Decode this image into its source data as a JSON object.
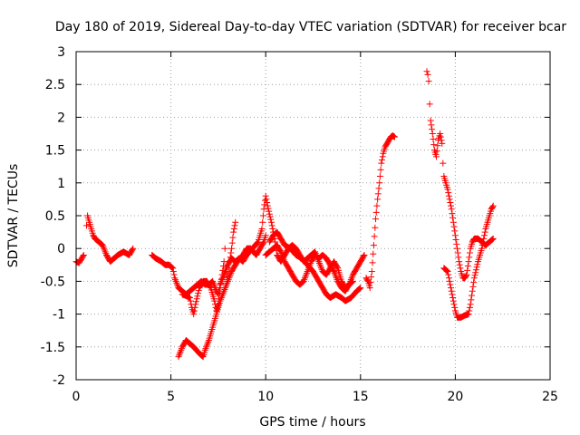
{
  "chart_data": {
    "type": "scatter",
    "title": "Day 180 of 2019, Sidereal Day-to-day VTEC variation (SDTVAR) for receiver bcar",
    "xlabel": "GPS time / hours",
    "ylabel": "SDTVAR / TECUs",
    "xlim": [
      0,
      25
    ],
    "ylim": [
      -2,
      3
    ],
    "xticks": [
      0,
      5,
      10,
      15,
      20,
      25
    ],
    "yticks": [
      -2,
      -1.5,
      -1,
      -0.5,
      0,
      0.5,
      1,
      1.5,
      2,
      2.5,
      3
    ],
    "xtick_labels": [
      "0",
      "5",
      "10",
      "15",
      "20",
      "25"
    ],
    "ytick_labels": [
      "-2",
      "-1.5",
      "-1",
      "-0.5",
      "0",
      "0.5",
      "1",
      "1.5",
      "2",
      "2.5",
      "3"
    ],
    "grid": true,
    "marker": "+",
    "series": [
      {
        "name": "SDTVAR",
        "color": "#ff0000",
        "segments": [
          [
            [
              0.0,
              -0.2
            ],
            [
              0.15,
              -0.22
            ],
            [
              0.3,
              -0.15
            ],
            [
              0.4,
              -0.1
            ]
          ],
          [
            [
              0.55,
              0.35
            ],
            [
              0.6,
              0.5
            ],
            [
              0.7,
              0.4
            ],
            [
              0.8,
              0.3
            ],
            [
              0.9,
              0.2
            ],
            [
              1.0,
              0.15
            ],
            [
              1.2,
              0.1
            ],
            [
              1.4,
              0.05
            ],
            [
              1.6,
              -0.1
            ],
            [
              1.8,
              -0.2
            ],
            [
              2.0,
              -0.15
            ],
            [
              2.2,
              -0.1
            ],
            [
              2.5,
              -0.05
            ],
            [
              2.8,
              -0.1
            ],
            [
              3.0,
              0.0
            ]
          ],
          [
            [
              4.0,
              -0.1
            ],
            [
              4.2,
              -0.15
            ],
            [
              4.5,
              -0.2
            ],
            [
              4.7,
              -0.25
            ],
            [
              4.9,
              -0.25
            ],
            [
              5.1,
              -0.3
            ],
            [
              5.2,
              -0.45
            ],
            [
              5.4,
              -0.6
            ],
            [
              5.6,
              -0.65
            ],
            [
              5.8,
              -0.7
            ],
            [
              6.0,
              -0.65
            ],
            [
              6.2,
              -0.6
            ],
            [
              6.4,
              -0.55
            ],
            [
              6.6,
              -0.5
            ],
            [
              6.8,
              -0.55
            ],
            [
              7.0,
              -0.55
            ],
            [
              7.2,
              -0.5
            ],
            [
              7.4,
              -0.65
            ],
            [
              7.5,
              -0.7
            ],
            [
              7.6,
              -0.55
            ],
            [
              7.8,
              -0.4
            ],
            [
              8.0,
              -0.25
            ],
            [
              8.2,
              -0.15
            ],
            [
              8.4,
              -0.2
            ],
            [
              8.6,
              -0.15
            ],
            [
              8.8,
              -0.2
            ],
            [
              9.0,
              -0.1
            ],
            [
              9.3,
              0.0
            ],
            [
              9.6,
              0.1
            ],
            [
              9.8,
              0.3
            ],
            [
              9.9,
              0.6
            ],
            [
              10.0,
              0.8
            ],
            [
              10.1,
              0.65
            ],
            [
              10.3,
              0.4
            ],
            [
              10.5,
              0.1
            ],
            [
              10.6,
              -0.1
            ],
            [
              10.8,
              -0.2
            ],
            [
              11.0,
              -0.1
            ],
            [
              11.2,
              0.0
            ],
            [
              11.4,
              0.05
            ],
            [
              11.6,
              0.0
            ],
            [
              11.8,
              -0.1
            ],
            [
              12.0,
              -0.2
            ],
            [
              12.2,
              -0.15
            ],
            [
              12.4,
              -0.1
            ],
            [
              12.6,
              -0.05
            ],
            [
              12.8,
              -0.2
            ],
            [
              13.0,
              -0.35
            ],
            [
              13.2,
              -0.4
            ],
            [
              13.4,
              -0.3
            ],
            [
              13.6,
              -0.2
            ],
            [
              13.8,
              -0.3
            ],
            [
              14.0,
              -0.5
            ],
            [
              14.2,
              -0.6
            ],
            [
              14.4,
              -0.55
            ],
            [
              14.6,
              -0.4
            ],
            [
              14.8,
              -0.3
            ],
            [
              15.0,
              -0.2
            ],
            [
              15.2,
              -0.1
            ]
          ],
          [
            [
              5.4,
              -1.65
            ],
            [
              5.6,
              -1.5
            ],
            [
              5.8,
              -1.4
            ],
            [
              6.0,
              -1.45
            ],
            [
              6.2,
              -1.5
            ],
            [
              6.5,
              -1.6
            ],
            [
              6.7,
              -1.65
            ],
            [
              6.8,
              -1.55
            ],
            [
              7.0,
              -1.4
            ],
            [
              7.2,
              -1.2
            ],
            [
              7.4,
              -1.0
            ],
            [
              7.6,
              -0.8
            ],
            [
              7.8,
              -0.65
            ],
            [
              8.0,
              -0.5
            ],
            [
              8.1,
              -0.2
            ],
            [
              8.2,
              0.0
            ],
            [
              8.3,
              0.25
            ],
            [
              8.4,
              0.4
            ]
          ],
          [
            [
              5.6,
              -0.7
            ],
            [
              5.8,
              -0.72
            ],
            [
              6.0,
              -0.75
            ],
            [
              6.1,
              -0.9
            ],
            [
              6.2,
              -1.0
            ],
            [
              6.3,
              -0.85
            ],
            [
              6.5,
              -0.6
            ],
            [
              6.7,
              -0.5
            ],
            [
              6.9,
              -0.5
            ],
            [
              7.1,
              -0.6
            ],
            [
              7.3,
              -0.8
            ],
            [
              7.4,
              -0.95
            ],
            [
              7.5,
              -0.85
            ],
            [
              7.6,
              -0.6
            ],
            [
              7.7,
              -0.4
            ],
            [
              7.8,
              -0.2
            ],
            [
              7.85,
              0.0
            ],
            [
              7.9,
              -0.3
            ],
            [
              8.0,
              -0.5
            ],
            [
              8.2,
              -0.35
            ],
            [
              8.5,
              -0.2
            ],
            [
              8.8,
              -0.1
            ],
            [
              9.0,
              0.0
            ],
            [
              9.2,
              0.0
            ],
            [
              9.5,
              -0.1
            ],
            [
              9.7,
              0.0
            ],
            [
              9.9,
              0.1
            ],
            [
              10.0,
              0.2
            ]
          ],
          [
            [
              10.0,
              -0.1
            ],
            [
              10.2,
              -0.05
            ],
            [
              10.4,
              0.0
            ],
            [
              10.6,
              0.05
            ],
            [
              10.8,
              -0.05
            ],
            [
              11.0,
              -0.2
            ],
            [
              11.2,
              -0.3
            ],
            [
              11.4,
              -0.4
            ],
            [
              11.6,
              -0.5
            ],
            [
              11.8,
              -0.55
            ],
            [
              12.0,
              -0.5
            ],
            [
              12.2,
              -0.35
            ],
            [
              12.4,
              -0.2
            ],
            [
              12.6,
              -0.1
            ],
            [
              12.8,
              -0.15
            ],
            [
              13.0,
              -0.1
            ],
            [
              13.2,
              -0.15
            ],
            [
              13.4,
              -0.25
            ],
            [
              13.6,
              -0.35
            ],
            [
              13.8,
              -0.5
            ],
            [
              14.0,
              -0.6
            ],
            [
              14.2,
              -0.65
            ],
            [
              14.4,
              -0.55
            ],
            [
              14.6,
              -0.5
            ]
          ],
          [
            [
              10.2,
              0.1
            ],
            [
              10.4,
              0.2
            ],
            [
              10.6,
              0.25
            ],
            [
              10.8,
              0.15
            ],
            [
              11.0,
              0.05
            ],
            [
              11.3,
              0.0
            ],
            [
              11.6,
              -0.1
            ],
            [
              11.9,
              -0.15
            ],
            [
              12.2,
              -0.25
            ],
            [
              12.5,
              -0.35
            ],
            [
              12.8,
              -0.5
            ],
            [
              13.0,
              -0.6
            ],
            [
              13.2,
              -0.7
            ],
            [
              13.4,
              -0.75
            ],
            [
              13.7,
              -0.7
            ],
            [
              14.0,
              -0.75
            ],
            [
              14.2,
              -0.8
            ],
            [
              14.5,
              -0.75
            ],
            [
              14.8,
              -0.65
            ],
            [
              15.0,
              -0.6
            ]
          ],
          [
            [
              15.3,
              -0.45
            ],
            [
              15.4,
              -0.5
            ],
            [
              15.5,
              -0.6
            ],
            [
              15.6,
              -0.35
            ],
            [
              15.7,
              0.05
            ],
            [
              15.8,
              0.45
            ],
            [
              15.9,
              0.75
            ],
            [
              16.0,
              1.0
            ],
            [
              16.1,
              1.3
            ],
            [
              16.2,
              1.45
            ],
            [
              16.3,
              1.55
            ],
            [
              16.4,
              1.6
            ],
            [
              16.5,
              1.65
            ],
            [
              16.6,
              1.7
            ],
            [
              16.7,
              1.72
            ],
            [
              16.8,
              1.7
            ]
          ],
          [
            [
              18.5,
              2.7
            ],
            [
              18.55,
              2.65
            ],
            [
              18.6,
              2.55
            ],
            [
              18.65,
              2.2
            ],
            [
              18.7,
              1.95
            ],
            [
              18.8,
              1.75
            ],
            [
              18.9,
              1.5
            ],
            [
              19.0,
              1.4
            ],
            [
              19.1,
              1.65
            ],
            [
              19.2,
              1.75
            ],
            [
              19.3,
              1.6
            ],
            [
              19.35,
              1.3
            ],
            [
              19.4,
              1.1
            ],
            [
              19.5,
              1.0
            ],
            [
              19.6,
              0.9
            ],
            [
              19.7,
              0.75
            ],
            [
              19.8,
              0.6
            ],
            [
              19.9,
              0.4
            ],
            [
              20.0,
              0.2
            ],
            [
              20.1,
              0.0
            ],
            [
              20.2,
              -0.2
            ],
            [
              20.3,
              -0.35
            ],
            [
              20.4,
              -0.45
            ],
            [
              20.5,
              -0.45
            ],
            [
              20.6,
              -0.4
            ],
            [
              20.7,
              -0.2
            ],
            [
              20.8,
              0.0
            ],
            [
              20.9,
              0.1
            ],
            [
              21.0,
              0.15
            ],
            [
              21.2,
              0.15
            ],
            [
              21.4,
              0.1
            ],
            [
              21.6,
              0.05
            ],
            [
              21.8,
              0.1
            ],
            [
              22.0,
              0.15
            ]
          ],
          [
            [
              19.4,
              -0.3
            ],
            [
              19.6,
              -0.35
            ],
            [
              19.7,
              -0.5
            ],
            [
              19.8,
              -0.65
            ],
            [
              19.9,
              -0.8
            ],
            [
              20.0,
              -0.95
            ],
            [
              20.1,
              -1.05
            ],
            [
              20.3,
              -1.05
            ],
            [
              20.5,
              -1.02
            ],
            [
              20.7,
              -1.0
            ],
            [
              20.8,
              -0.85
            ],
            [
              20.9,
              -0.65
            ],
            [
              21.0,
              -0.45
            ],
            [
              21.2,
              -0.2
            ],
            [
              21.4,
              0.0
            ],
            [
              21.5,
              0.15
            ],
            [
              21.6,
              0.3
            ],
            [
              21.7,
              0.4
            ],
            [
              21.8,
              0.5
            ],
            [
              21.9,
              0.6
            ],
            [
              22.0,
              0.65
            ]
          ]
        ]
      }
    ]
  }
}
